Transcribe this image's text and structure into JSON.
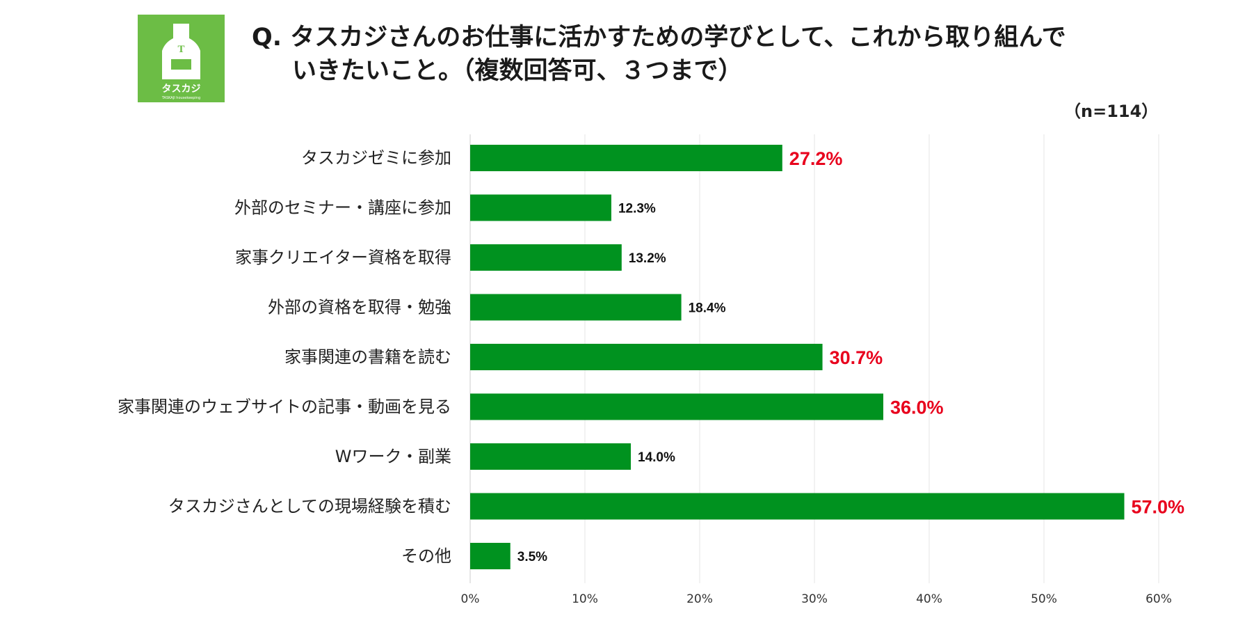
{
  "header": {
    "title_line1": "Q. タスカジさんのお仕事に活かすための学びとして、これから取り組んで",
    "title_line2": "いきたいこと。（複数回答可、３つまで）",
    "sample_size": "（n=114）"
  },
  "logo": {
    "text": "タスカジ",
    "subtext": "TASKAJI housekeeping",
    "letter": "T",
    "icon": "apron-icon",
    "bg_color": "#6cbd45"
  },
  "chart_data": {
    "type": "bar",
    "orientation": "horizontal",
    "categories": [
      "タスカジゼミに参加",
      "外部のセミナー・講座に参加",
      "家事クリエイター資格を取得",
      "外部の資格を取得・勉強",
      "家事関連の書籍を読む",
      "家事関連のウェブサイトの記事・動画を見る",
      "Wワーク・副業",
      "タスカジさんとしての現場経験を積む",
      "その他"
    ],
    "values": [
      27.2,
      12.3,
      13.2,
      18.4,
      30.7,
      36.0,
      14.0,
      57.0,
      3.5
    ],
    "value_labels": [
      "27.2%",
      "12.3%",
      "13.2%",
      "18.4%",
      "30.7%",
      "36.0%",
      "14.0%",
      "57.0%",
      "3.5%"
    ],
    "highlighted": [
      true,
      false,
      false,
      false,
      true,
      true,
      false,
      true,
      false
    ],
    "xlim": [
      0,
      60
    ],
    "xticks": [
      0,
      10,
      20,
      30,
      40,
      50,
      60
    ],
    "xtick_labels": [
      "0%",
      "10%",
      "20%",
      "30%",
      "40%",
      "50%",
      "60%"
    ],
    "grid": "vertical",
    "bar_color": "#00921f",
    "highlight_label_color": "#e8001c",
    "label_color": "#111111"
  }
}
